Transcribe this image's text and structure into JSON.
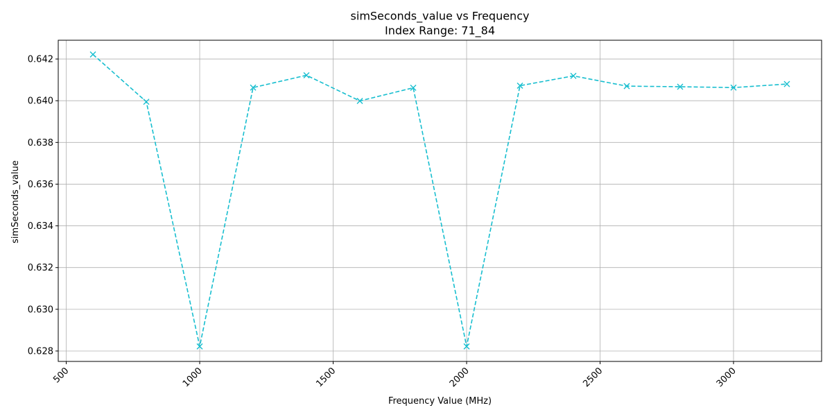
{
  "chart_data": {
    "type": "line",
    "title": "simSeconds_value vs Frequency",
    "subtitle": "Index Range: 71_84",
    "xlabel": "Frequency Value (MHz)",
    "ylabel": "simSeconds_value",
    "xlim": [
      470,
      3330
    ],
    "ylim": [
      0.6275,
      0.6429
    ],
    "x_ticks": [
      500,
      1000,
      1500,
      2000,
      2500,
      3000
    ],
    "x_tick_labels": [
      "500",
      "1000",
      "1500",
      "2000",
      "2500",
      "3000"
    ],
    "y_ticks": [
      0.628,
      0.63,
      0.632,
      0.634,
      0.636,
      0.638,
      0.64,
      0.642
    ],
    "y_tick_labels": [
      "0.628",
      "0.630",
      "0.632",
      "0.634",
      "0.636",
      "0.638",
      "0.640",
      "0.642"
    ],
    "grid": true,
    "x_tick_rotation": "45 degrees",
    "series": [
      {
        "color": "#17becf",
        "line_style": "dashed",
        "marker": "x",
        "x": [
          600,
          800,
          1000,
          1200,
          1400,
          1600,
          1800,
          2000,
          2200,
          2400,
          2600,
          2800,
          3000,
          3200
        ],
        "y": [
          0.64222,
          0.63995,
          0.62822,
          0.64063,
          0.64122,
          0.63999,
          0.64062,
          0.62822,
          0.64072,
          0.64119,
          0.6407,
          0.64067,
          0.64063,
          0.6408
        ]
      }
    ]
  }
}
